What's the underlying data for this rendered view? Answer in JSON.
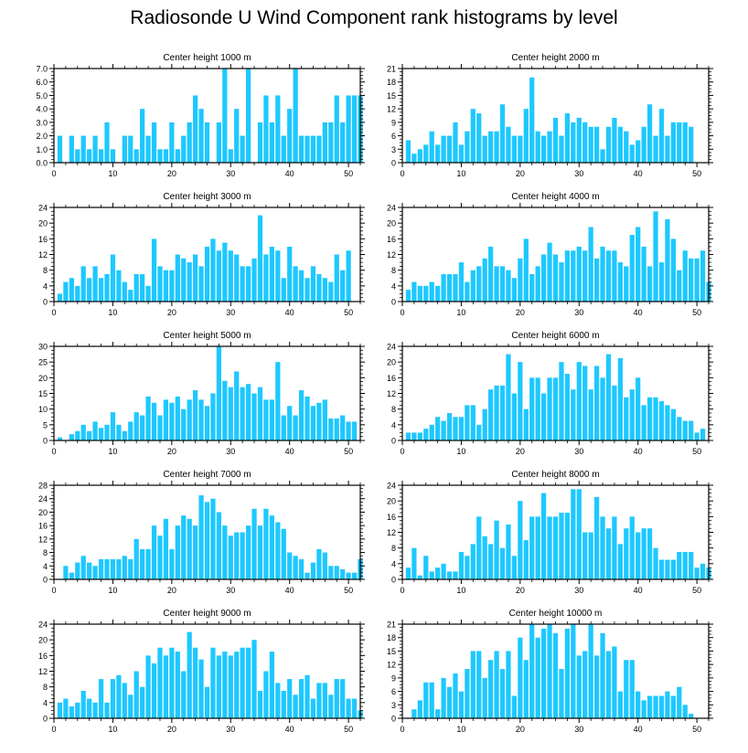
{
  "title": "Radiosonde U Wind Component rank histograms by level",
  "colors": {
    "bar": "#1ec8ff",
    "bar_stroke": "#0aa6e0",
    "axis": "#000000"
  },
  "chart_data": [
    {
      "type": "bar",
      "title": "Center height 1000 m",
      "xlim": [
        0,
        52
      ],
      "xticks": [
        0,
        10,
        20,
        30,
        40,
        50
      ],
      "ylim": [
        0,
        7
      ],
      "yticks": [
        0,
        1,
        2,
        3,
        4,
        5,
        6,
        7
      ],
      "ytick_labels": [
        "0.0",
        "1.0",
        "2.0",
        "3.0",
        "4.0",
        "5.0",
        "6.0",
        "7.0"
      ],
      "x": [
        1,
        2,
        3,
        4,
        5,
        6,
        7,
        8,
        9,
        10,
        11,
        12,
        13,
        14,
        15,
        16,
        17,
        18,
        19,
        20,
        21,
        22,
        23,
        24,
        25,
        26,
        27,
        28,
        29,
        30,
        31,
        32,
        33,
        34,
        35,
        36,
        37,
        38,
        39,
        40,
        41,
        42,
        43,
        44,
        45,
        46,
        47,
        48,
        49,
        50,
        51,
        52
      ],
      "values": [
        2,
        0,
        2,
        1,
        2,
        1,
        2,
        1,
        3,
        1,
        0,
        2,
        2,
        1,
        4,
        2,
        3,
        1,
        1,
        3,
        1,
        2,
        3,
        5,
        4,
        3,
        0,
        3,
        7,
        1,
        4,
        2,
        7,
        0,
        3,
        5,
        3,
        5,
        2,
        4,
        7,
        2,
        2,
        2,
        2,
        3,
        3,
        5,
        3,
        5,
        5,
        5
      ]
    },
    {
      "type": "bar",
      "title": "Center height 2000 m",
      "xlim": [
        0,
        52
      ],
      "xticks": [
        0,
        10,
        20,
        30,
        40,
        50
      ],
      "ylim": [
        0,
        21
      ],
      "yticks": [
        0,
        3,
        6,
        9,
        12,
        15,
        18,
        21
      ],
      "ytick_labels": [
        "0",
        "3",
        "6",
        "9",
        "12",
        "15",
        "18",
        "21"
      ],
      "x": [
        1,
        2,
        3,
        4,
        5,
        6,
        7,
        8,
        9,
        10,
        11,
        12,
        13,
        14,
        15,
        16,
        17,
        18,
        19,
        20,
        21,
        22,
        23,
        24,
        25,
        26,
        27,
        28,
        29,
        30,
        31,
        32,
        33,
        34,
        35,
        36,
        37,
        38,
        39,
        40,
        41,
        42,
        43,
        44,
        45,
        46,
        47,
        48,
        49,
        50,
        51,
        52
      ],
      "values": [
        5,
        2,
        3,
        4,
        7,
        4,
        6,
        6,
        9,
        4,
        7,
        12,
        11,
        6,
        7,
        7,
        13,
        8,
        6,
        6,
        12,
        19,
        7,
        6,
        7,
        10,
        6,
        11,
        9,
        10,
        9,
        8,
        8,
        3,
        8,
        10,
        8,
        7,
        4,
        5,
        8,
        13,
        6,
        12,
        6,
        9,
        9,
        9,
        8,
        0,
        0,
        0
      ]
    },
    {
      "type": "bar",
      "title": "Center height 3000 m",
      "xlim": [
        0,
        52
      ],
      "xticks": [
        0,
        10,
        20,
        30,
        40,
        50
      ],
      "ylim": [
        0,
        24
      ],
      "yticks": [
        0,
        4,
        8,
        12,
        16,
        20,
        24
      ],
      "ytick_labels": [
        "0",
        "4",
        "8",
        "12",
        "16",
        "20",
        "24"
      ],
      "x": [
        1,
        2,
        3,
        4,
        5,
        6,
        7,
        8,
        9,
        10,
        11,
        12,
        13,
        14,
        15,
        16,
        17,
        18,
        19,
        20,
        21,
        22,
        23,
        24,
        25,
        26,
        27,
        28,
        29,
        30,
        31,
        32,
        33,
        34,
        35,
        36,
        37,
        38,
        39,
        40,
        41,
        42,
        43,
        44,
        45,
        46,
        47,
        48,
        49,
        50,
        51,
        52
      ],
      "values": [
        2,
        5,
        6,
        4,
        9,
        6,
        9,
        6,
        7,
        12,
        8,
        5,
        3,
        7,
        7,
        4,
        16,
        9,
        8,
        8,
        12,
        11,
        10,
        12,
        9,
        14,
        16,
        13,
        15,
        13,
        12,
        9,
        9,
        11,
        22,
        12,
        14,
        13,
        6,
        14,
        9,
        8,
        6,
        9,
        7,
        6,
        5,
        12,
        8,
        13,
        0,
        0
      ]
    },
    {
      "type": "bar",
      "title": "Center height 4000 m",
      "xlim": [
        0,
        52
      ],
      "xticks": [
        0,
        10,
        20,
        30,
        40,
        50
      ],
      "ylim": [
        0,
        24
      ],
      "yticks": [
        0,
        4,
        8,
        12,
        16,
        20,
        24
      ],
      "ytick_labels": [
        "0",
        "4",
        "8",
        "12",
        "16",
        "20",
        "24"
      ],
      "x": [
        1,
        2,
        3,
        4,
        5,
        6,
        7,
        8,
        9,
        10,
        11,
        12,
        13,
        14,
        15,
        16,
        17,
        18,
        19,
        20,
        21,
        22,
        23,
        24,
        25,
        26,
        27,
        28,
        29,
        30,
        31,
        32,
        33,
        34,
        35,
        36,
        37,
        38,
        39,
        40,
        41,
        42,
        43,
        44,
        45,
        46,
        47,
        48,
        49,
        50,
        51,
        52
      ],
      "values": [
        3,
        5,
        4,
        4,
        5,
        4,
        7,
        7,
        7,
        10,
        5,
        8,
        9,
        11,
        14,
        9,
        9,
        8,
        6,
        11,
        16,
        7,
        9,
        12,
        15,
        12,
        10,
        13,
        13,
        14,
        13,
        19,
        11,
        14,
        13,
        13,
        10,
        9,
        17,
        19,
        14,
        9,
        23,
        10,
        21,
        16,
        8,
        13,
        11,
        11,
        13,
        5
      ]
    },
    {
      "type": "bar",
      "title": "Center height 5000 m",
      "xlim": [
        0,
        52
      ],
      "xticks": [
        0,
        10,
        20,
        30,
        40,
        50
      ],
      "ylim": [
        0,
        30
      ],
      "yticks": [
        0,
        5,
        10,
        15,
        20,
        25,
        30
      ],
      "ytick_labels": [
        "0",
        "5",
        "10",
        "15",
        "20",
        "25",
        "30"
      ],
      "x": [
        1,
        2,
        3,
        4,
        5,
        6,
        7,
        8,
        9,
        10,
        11,
        12,
        13,
        14,
        15,
        16,
        17,
        18,
        19,
        20,
        21,
        22,
        23,
        24,
        25,
        26,
        27,
        28,
        29,
        30,
        31,
        32,
        33,
        34,
        35,
        36,
        37,
        38,
        39,
        40,
        41,
        42,
        43,
        44,
        45,
        46,
        47,
        48,
        49,
        50,
        51,
        52
      ],
      "values": [
        1,
        0,
        2,
        3,
        5,
        3,
        6,
        4,
        5,
        9,
        5,
        3,
        6,
        9,
        8,
        14,
        12,
        8,
        13,
        12,
        14,
        10,
        13,
        16,
        13,
        11,
        15,
        30,
        19,
        17,
        22,
        17,
        18,
        15,
        17,
        13,
        13,
        25,
        8,
        11,
        8,
        16,
        14,
        11,
        12,
        13,
        7,
        7,
        8,
        6,
        6,
        0
      ]
    },
    {
      "type": "bar",
      "title": "Center height 6000 m",
      "xlim": [
        0,
        52
      ],
      "xticks": [
        0,
        10,
        20,
        30,
        40,
        50
      ],
      "ylim": [
        0,
        24
      ],
      "yticks": [
        0,
        4,
        8,
        12,
        16,
        20,
        24
      ],
      "ytick_labels": [
        "0",
        "4",
        "8",
        "12",
        "16",
        "20",
        "24"
      ],
      "x": [
        1,
        2,
        3,
        4,
        5,
        6,
        7,
        8,
        9,
        10,
        11,
        12,
        13,
        14,
        15,
        16,
        17,
        18,
        19,
        20,
        21,
        22,
        23,
        24,
        25,
        26,
        27,
        28,
        29,
        30,
        31,
        32,
        33,
        34,
        35,
        36,
        37,
        38,
        39,
        40,
        41,
        42,
        43,
        44,
        45,
        46,
        47,
        48,
        49,
        50,
        51,
        52
      ],
      "values": [
        2,
        2,
        2,
        3,
        4,
        6,
        5,
        7,
        6,
        6,
        9,
        9,
        4,
        8,
        13,
        14,
        14,
        22,
        12,
        20,
        8,
        16,
        16,
        12,
        16,
        16,
        20,
        17,
        13,
        20,
        19,
        13,
        19,
        16,
        22,
        14,
        21,
        11,
        13,
        16,
        9,
        11,
        11,
        10,
        9,
        8,
        6,
        5,
        5,
        2,
        3,
        0
      ]
    },
    {
      "type": "bar",
      "title": "Center height 7000 m",
      "xlim": [
        0,
        52
      ],
      "xticks": [
        0,
        10,
        20,
        30,
        40,
        50
      ],
      "ylim": [
        0,
        28
      ],
      "yticks": [
        0,
        4,
        8,
        12,
        16,
        20,
        24,
        28
      ],
      "ytick_labels": [
        "0",
        "4",
        "8",
        "12",
        "16",
        "20",
        "24",
        "28"
      ],
      "x": [
        1,
        2,
        3,
        4,
        5,
        6,
        7,
        8,
        9,
        10,
        11,
        12,
        13,
        14,
        15,
        16,
        17,
        18,
        19,
        20,
        21,
        22,
        23,
        24,
        25,
        26,
        27,
        28,
        29,
        30,
        31,
        32,
        33,
        34,
        35,
        36,
        37,
        38,
        39,
        40,
        41,
        42,
        43,
        44,
        45,
        46,
        47,
        48,
        49,
        50,
        51,
        52
      ],
      "values": [
        0,
        4,
        2,
        5,
        7,
        5,
        4,
        6,
        6,
        6,
        6,
        7,
        6,
        12,
        9,
        9,
        16,
        13,
        18,
        9,
        16,
        19,
        18,
        16,
        25,
        23,
        24,
        20,
        16,
        13,
        14,
        14,
        16,
        21,
        16,
        21,
        19,
        17,
        15,
        8,
        7,
        6,
        2,
        5,
        9,
        8,
        4,
        4,
        3,
        2,
        2,
        6
      ]
    },
    {
      "type": "bar",
      "title": "Center height 8000 m",
      "xlim": [
        0,
        52
      ],
      "xticks": [
        0,
        10,
        20,
        30,
        40,
        50
      ],
      "ylim": [
        0,
        24
      ],
      "yticks": [
        0,
        4,
        8,
        12,
        16,
        20,
        24
      ],
      "ytick_labels": [
        "0",
        "4",
        "8",
        "12",
        "16",
        "20",
        "24"
      ],
      "x": [
        1,
        2,
        3,
        4,
        5,
        6,
        7,
        8,
        9,
        10,
        11,
        12,
        13,
        14,
        15,
        16,
        17,
        18,
        19,
        20,
        21,
        22,
        23,
        24,
        25,
        26,
        27,
        28,
        29,
        30,
        31,
        32,
        33,
        34,
        35,
        36,
        37,
        38,
        39,
        40,
        41,
        42,
        43,
        44,
        45,
        46,
        47,
        48,
        49,
        50,
        51,
        52
      ],
      "values": [
        3,
        8,
        1,
        6,
        2,
        3,
        4,
        2,
        2,
        7,
        6,
        9,
        16,
        11,
        9,
        15,
        8,
        14,
        6,
        20,
        10,
        16,
        16,
        22,
        16,
        16,
        17,
        17,
        23,
        23,
        12,
        12,
        21,
        16,
        13,
        16,
        9,
        13,
        16,
        12,
        13,
        13,
        8,
        5,
        5,
        5,
        7,
        7,
        7,
        3,
        4,
        3
      ]
    },
    {
      "type": "bar",
      "title": "Center height 9000 m",
      "xlim": [
        0,
        52
      ],
      "xticks": [
        0,
        10,
        20,
        30,
        40,
        50
      ],
      "ylim": [
        0,
        24
      ],
      "yticks": [
        0,
        4,
        8,
        12,
        16,
        20,
        24
      ],
      "ytick_labels": [
        "0",
        "4",
        "8",
        "12",
        "16",
        "20",
        "24"
      ],
      "x": [
        1,
        2,
        3,
        4,
        5,
        6,
        7,
        8,
        9,
        10,
        11,
        12,
        13,
        14,
        15,
        16,
        17,
        18,
        19,
        20,
        21,
        22,
        23,
        24,
        25,
        26,
        27,
        28,
        29,
        30,
        31,
        32,
        33,
        34,
        35,
        36,
        37,
        38,
        39,
        40,
        41,
        42,
        43,
        44,
        45,
        46,
        47,
        48,
        49,
        50,
        51,
        52
      ],
      "values": [
        4,
        5,
        3,
        4,
        7,
        5,
        4,
        10,
        4,
        10,
        11,
        9,
        6,
        12,
        8,
        16,
        14,
        18,
        16,
        18,
        17,
        12,
        22,
        18,
        15,
        8,
        18,
        16,
        17,
        16,
        17,
        18,
        18,
        20,
        7,
        12,
        17,
        9,
        7,
        10,
        6,
        10,
        11,
        5,
        9,
        9,
        6,
        10,
        10,
        5,
        5,
        2
      ]
    },
    {
      "type": "bar",
      "title": "Center height 10000 m",
      "xlim": [
        0,
        52
      ],
      "xticks": [
        0,
        10,
        20,
        30,
        40,
        50
      ],
      "ylim": [
        0,
        21
      ],
      "yticks": [
        0,
        3,
        6,
        9,
        12,
        15,
        18,
        21
      ],
      "ytick_labels": [
        "0",
        "3",
        "6",
        "9",
        "12",
        "15",
        "18",
        "21"
      ],
      "x": [
        1,
        2,
        3,
        4,
        5,
        6,
        7,
        8,
        9,
        10,
        11,
        12,
        13,
        14,
        15,
        16,
        17,
        18,
        19,
        20,
        21,
        22,
        23,
        24,
        25,
        26,
        27,
        28,
        29,
        30,
        31,
        32,
        33,
        34,
        35,
        36,
        37,
        38,
        39,
        40,
        41,
        42,
        43,
        44,
        45,
        46,
        47,
        48,
        49,
        50,
        51,
        52
      ],
      "values": [
        0,
        2,
        4,
        8,
        8,
        2,
        9,
        7,
        10,
        6,
        11,
        15,
        15,
        9,
        13,
        15,
        11,
        15,
        5,
        18,
        13,
        21,
        18,
        20,
        21,
        19,
        11,
        20,
        21,
        14,
        15,
        21,
        14,
        19,
        15,
        16,
        6,
        13,
        13,
        6,
        4,
        5,
        5,
        5,
        6,
        5,
        7,
        3,
        1,
        0,
        0,
        0
      ]
    }
  ]
}
